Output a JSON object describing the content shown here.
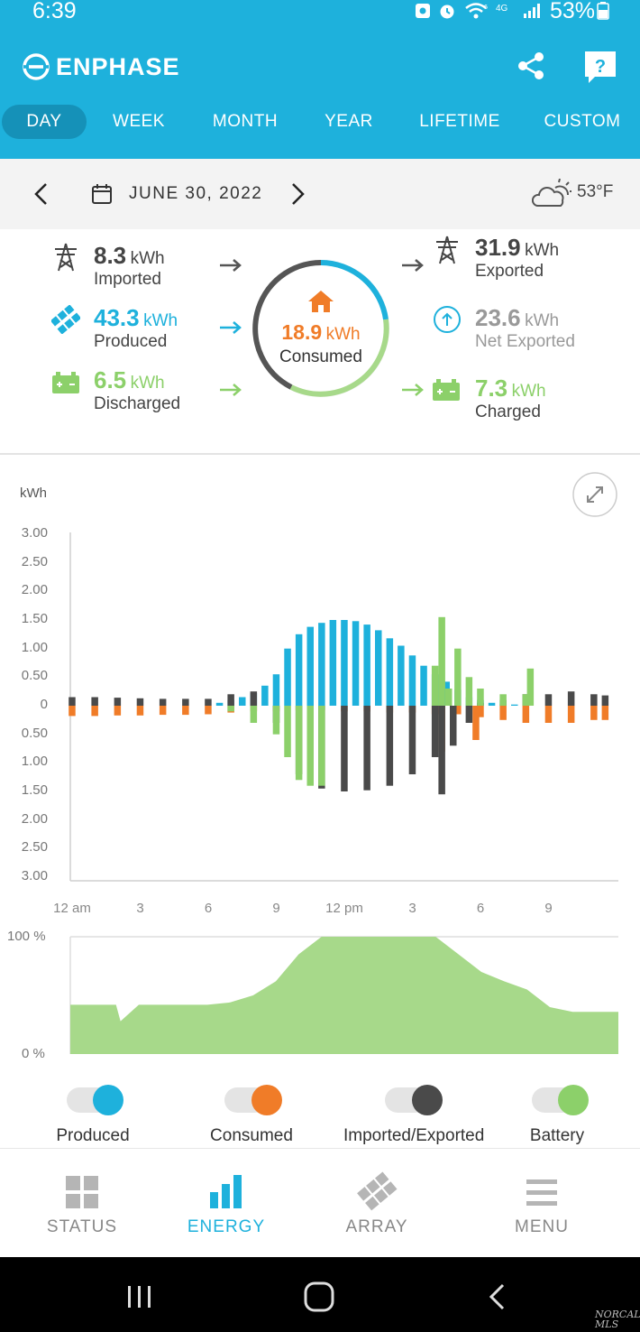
{
  "status_bar": {
    "time": "6:39",
    "battery_pct": "53%"
  },
  "header": {
    "brand": "ENPHASE"
  },
  "tabs": [
    "DAY",
    "WEEK",
    "MONTH",
    "YEAR",
    "LIFETIME",
    "CUSTOM"
  ],
  "date_bar": {
    "date": "JUNE 30, 2022",
    "temperature": "53°F"
  },
  "flows": {
    "imported": {
      "value": "8.3",
      "unit": "kWh",
      "label": "Imported"
    },
    "produced": {
      "value": "43.3",
      "unit": "kWh",
      "label": "Produced"
    },
    "discharged": {
      "value": "6.5",
      "unit": "kWh",
      "label": "Discharged"
    },
    "consumed": {
      "value": "18.9",
      "unit": "kWh",
      "label": "Consumed"
    },
    "exported": {
      "value": "31.9",
      "unit": "kWh",
      "label": "Exported"
    },
    "net_exported": {
      "value": "23.6",
      "unit": "kWh",
      "label": "Net Exported"
    },
    "charged": {
      "value": "7.3",
      "unit": "kWh",
      "label": "Charged"
    }
  },
  "colors": {
    "brand": "#1eb1dc",
    "produced": "#1eb1dc",
    "consumed": "#f07c28",
    "grid": "#4a4a4a",
    "battery": "#8cd06a",
    "battery_soc": "#a7d98a"
  },
  "chart_data": [
    {
      "type": "bar",
      "ylabel": "kWh",
      "ytick_labels": [
        "3.00",
        "2.50",
        "2.00",
        "1.50",
        "1.00",
        "0.50",
        "0",
        "0.50",
        "1.00",
        "1.50",
        "2.00",
        "2.50",
        "3.00"
      ],
      "xtick_labels": [
        "12 am",
        "3",
        "6",
        "9",
        "12 pm",
        "3",
        "6",
        "9"
      ],
      "ylim": [
        -3,
        3
      ],
      "x_range_hours": [
        0,
        24
      ],
      "series": [
        {
          "name": "Produced",
          "color": "#1eb1dc",
          "x": [
            6.5,
            7,
            7.5,
            8,
            8.5,
            9,
            9.5,
            10,
            10.5,
            11,
            11.5,
            12,
            12.5,
            13,
            13.5,
            14,
            14.5,
            15,
            15.5,
            16,
            16.5,
            17,
            17.5,
            18,
            18.5,
            19,
            19.5
          ],
          "y": [
            0.05,
            0.1,
            0.15,
            0.22,
            0.35,
            0.55,
            1.0,
            1.25,
            1.38,
            1.45,
            1.5,
            1.5,
            1.48,
            1.42,
            1.32,
            1.18,
            1.05,
            0.88,
            0.7,
            0.55,
            0.42,
            0.28,
            0.15,
            0.1,
            0.05,
            0.03,
            0.02
          ]
        },
        {
          "name": "Consumed",
          "color": "#f07c28",
          "x": [
            0,
            1,
            2,
            3,
            4,
            5,
            6,
            7,
            8,
            9,
            10,
            11,
            12,
            13,
            14,
            15,
            16,
            16.3,
            17,
            17.8,
            18,
            19,
            20,
            21,
            22,
            23,
            23.5
          ],
          "y": [
            -0.18,
            -0.18,
            -0.17,
            -0.17,
            -0.16,
            -0.16,
            -0.15,
            -0.12,
            -0.1,
            -0.1,
            -0.08,
            -0.08,
            -0.1,
            -0.1,
            -0.12,
            -0.12,
            -0.15,
            -0.8,
            -0.15,
            -0.6,
            -0.2,
            -0.25,
            -0.3,
            -0.3,
            -0.3,
            -0.25,
            -0.25
          ]
        },
        {
          "name": "Imported/Exported",
          "color": "#4a4a4a",
          "x": [
            0,
            1,
            2,
            3,
            4,
            5,
            6,
            7,
            8,
            9,
            10,
            11,
            12,
            13,
            14,
            15,
            16,
            16.3,
            16.8,
            17.5,
            18,
            19,
            20,
            21,
            22,
            23,
            23.5
          ],
          "y": [
            0.15,
            0.15,
            0.14,
            0.13,
            0.12,
            0.12,
            0.12,
            0.2,
            0.25,
            -0.3,
            -1.2,
            -1.45,
            -1.5,
            -1.48,
            -1.4,
            -1.2,
            -0.9,
            -1.55,
            -0.7,
            -0.3,
            0.05,
            0.1,
            0.2,
            0.2,
            0.25,
            0.2,
            0.18
          ]
        },
        {
          "name": "Battery",
          "color": "#8cd06a",
          "x": [
            7,
            8,
            9,
            9.5,
            10,
            10.5,
            11,
            16,
            16.3,
            16.6,
            17,
            17.5,
            18,
            19,
            20,
            20.2
          ],
          "y": [
            -0.1,
            -0.3,
            -0.5,
            -0.9,
            -1.3,
            -1.4,
            -1.4,
            0.7,
            1.55,
            0.3,
            1.0,
            0.5,
            0.3,
            0.2,
            0.2,
            0.65
          ]
        }
      ]
    },
    {
      "type": "area",
      "name": "Battery",
      "color": "#a7d98a",
      "ytick_labels": [
        "100 %",
        "0 %"
      ],
      "ylim": [
        0,
        100
      ],
      "x": [
        0,
        1.5,
        2,
        2.2,
        3,
        6,
        7,
        8,
        9,
        10,
        11,
        12,
        13,
        14,
        15,
        16,
        17,
        18,
        19,
        20,
        21,
        22,
        23,
        24
      ],
      "y": [
        42,
        42,
        42,
        28,
        42,
        42,
        44,
        50,
        62,
        85,
        100,
        100,
        100,
        100,
        100,
        100,
        85,
        70,
        62,
        55,
        40,
        36,
        36,
        36
      ]
    }
  ],
  "chart_controls": {
    "expand": "expand-icon"
  },
  "legend": [
    {
      "label": "Produced",
      "color": "#1eb1dc"
    },
    {
      "label": "Consumed",
      "color": "#f07c28"
    },
    {
      "label": "Imported/Exported",
      "color": "#4a4a4a"
    },
    {
      "label": "Battery",
      "color": "#8cd06a"
    }
  ],
  "bottom_nav": [
    {
      "label": "STATUS",
      "icon": "grid-icon"
    },
    {
      "label": "ENERGY",
      "icon": "bar-chart-icon"
    },
    {
      "label": "ARRAY",
      "icon": "solar-array-icon"
    },
    {
      "label": "MENU",
      "icon": "menu-icon"
    }
  ],
  "watermark": "NORCAL MLS"
}
